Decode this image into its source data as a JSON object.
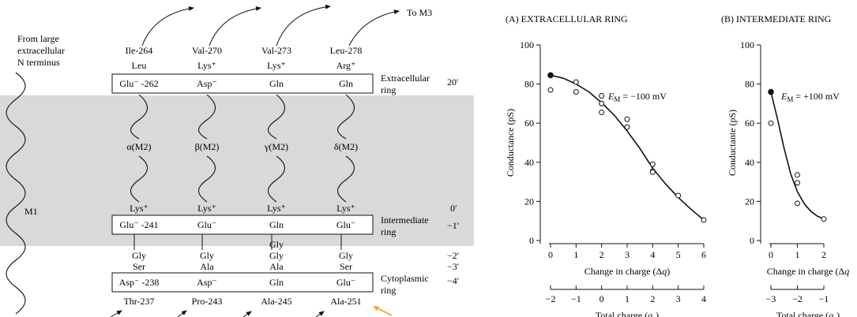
{
  "diagram": {
    "top_arrow_label": "To M3",
    "left_label": [
      "From large",
      "extracellular",
      "N terminus"
    ],
    "m1_label": "M1",
    "columns": [
      {
        "top_residue": "Ile-264",
        "extra_residue": "Leu",
        "extra_ring": "Glu⁻ -262",
        "subunit": "α(M2)",
        "lys": "Lys⁺",
        "inter_ring": "Glu⁻ -241",
        "gly_line": "",
        "below1": "Gly",
        "below2": "Ser",
        "cyto_ring": "Asp⁻ -238",
        "bottom_residue": "Thr-237"
      },
      {
        "top_residue": "Val-270",
        "extra_residue": "Lys⁺",
        "extra_ring": "Asp⁻",
        "subunit": "β(M2)",
        "lys": "Lys⁺",
        "inter_ring": "Glu⁻",
        "gly_line": "",
        "below1": "Gly",
        "below2": "Ala",
        "cyto_ring": "Asp⁻",
        "bottom_residue": "Pro-243"
      },
      {
        "top_residue": "Val-273",
        "extra_residue": "Lys⁺",
        "extra_ring": "Gln",
        "subunit": "γ(M2)",
        "lys": "Lys⁺",
        "inter_ring": "Gln",
        "gly_line": "Gly",
        "below1": "Gly",
        "below2": "Ala",
        "cyto_ring": "Gln",
        "bottom_residue": "Ala-245"
      },
      {
        "top_residue": "Leu-278",
        "extra_residue": "Arg⁺",
        "extra_ring": "Gln",
        "subunit": "δ(M2)",
        "lys": "Lys⁺",
        "inter_ring": "Glu⁻",
        "gly_line": "",
        "below1": "Gly",
        "below2": "Ser",
        "cyto_ring": "Glu⁻",
        "bottom_residue": "Ala-251"
      }
    ],
    "ring_labels": {
      "extracellular": [
        "Extracellular",
        "ring"
      ],
      "intermediate": [
        "Intermediate",
        "ring"
      ],
      "cytoplasmic": [
        "Cytoplasmic",
        "ring"
      ]
    },
    "positions": [
      "20′",
      "0′",
      "−1′",
      "−2′",
      "−3′",
      "−4′"
    ]
  },
  "chart_data": [
    {
      "type": "scatter",
      "title": "(A)  EXTRACELLULAR RING",
      "ylabel": "Conductance  (pS)",
      "xlabel": "Change in charge (Δq)",
      "xlim": [
        0,
        6
      ],
      "ylim": [
        0,
        100
      ],
      "xticks": [
        0,
        1,
        2,
        3,
        4,
        5,
        6
      ],
      "yticks": [
        0,
        20,
        40,
        60,
        80,
        100
      ],
      "annotation": "E_M = −100 mV",
      "filled_point": {
        "x": 0,
        "y": 84.5
      },
      "open_points": [
        {
          "x": 0,
          "y": 77
        },
        {
          "x": 1,
          "y": 81
        },
        {
          "x": 1,
          "y": 76
        },
        {
          "x": 2,
          "y": 74
        },
        {
          "x": 2,
          "y": 70
        },
        {
          "x": 2,
          "y": 65.5
        },
        {
          "x": 3,
          "y": 62
        },
        {
          "x": 3,
          "y": 58
        },
        {
          "x": 4,
          "y": 39
        },
        {
          "x": 4,
          "y": 35.5
        },
        {
          "x": 4,
          "y": 35
        },
        {
          "x": 5,
          "y": 23
        },
        {
          "x": 6,
          "y": 10.5
        }
      ],
      "curve": [
        {
          "x": 0,
          "y": 84.5
        },
        {
          "x": 0.5,
          "y": 83
        },
        {
          "x": 1,
          "y": 80
        },
        {
          "x": 1.5,
          "y": 76
        },
        {
          "x": 2,
          "y": 70.5
        },
        {
          "x": 2.5,
          "y": 64
        },
        {
          "x": 3,
          "y": 56
        },
        {
          "x": 3.5,
          "y": 47
        },
        {
          "x": 4,
          "y": 37
        },
        {
          "x": 4.5,
          "y": 29
        },
        {
          "x": 5,
          "y": 22
        },
        {
          "x": 5.5,
          "y": 16
        },
        {
          "x": 6,
          "y": 10.5
        }
      ],
      "secondary_axis": {
        "label": "Total charge (q_e)",
        "ticks": [
          "−2",
          "−1",
          "0",
          "1",
          "2",
          "3",
          "4"
        ]
      }
    },
    {
      "type": "scatter",
      "title": "(B)  INTERMEDIATE RING",
      "ylabel": "Conductante  (pS)",
      "xlabel": "Change in charge (Δq",
      "xlim": [
        0,
        2
      ],
      "ylim": [
        0,
        100
      ],
      "xticks": [
        0,
        1,
        2
      ],
      "yticks": [
        0,
        20,
        40,
        60,
        80,
        100
      ],
      "annotation": "E_M = +100 mV",
      "filled_point": {
        "x": 0,
        "y": 76
      },
      "open_points": [
        {
          "x": 0,
          "y": 60
        },
        {
          "x": 1,
          "y": 33.5
        },
        {
          "x": 1,
          "y": 29.5
        },
        {
          "x": 1,
          "y": 19
        },
        {
          "x": 2,
          "y": 11
        }
      ],
      "curve": [
        {
          "x": 0,
          "y": 76
        },
        {
          "x": 0.25,
          "y": 62
        },
        {
          "x": 0.5,
          "y": 47
        },
        {
          "x": 0.75,
          "y": 34
        },
        {
          "x": 1,
          "y": 25
        },
        {
          "x": 1.25,
          "y": 19
        },
        {
          "x": 1.5,
          "y": 15
        },
        {
          "x": 1.75,
          "y": 12.5
        },
        {
          "x": 2,
          "y": 11
        }
      ],
      "secondary_axis": {
        "label": "Total charge (q_e)",
        "ticks": [
          "−3",
          "−2",
          "−1"
        ]
      }
    }
  ]
}
